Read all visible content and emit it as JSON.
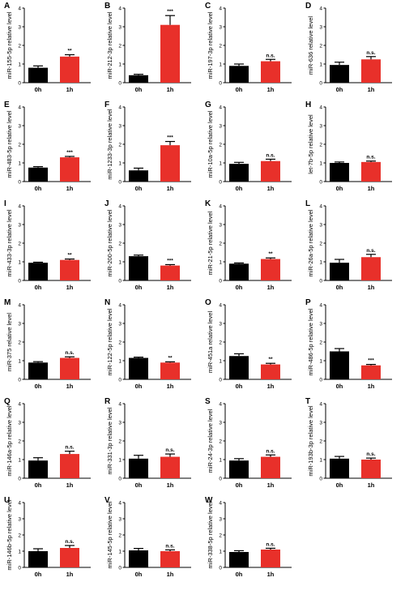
{
  "colors": {
    "control": "#000000",
    "treated": "#e8302a"
  },
  "chart_data": [
    {
      "type": "bar",
      "letter": "A",
      "ylabel": "miR-155-5p relative level",
      "categories": [
        "0h",
        "1h"
      ],
      "values": [
        0.8,
        1.4
      ],
      "errors": [
        0.1,
        0.1
      ],
      "yticks": [
        "0",
        "1",
        "2",
        "3",
        "4"
      ],
      "ylim": [
        0,
        4
      ],
      "significance": "**"
    },
    {
      "type": "bar",
      "letter": "B",
      "ylabel": "miR-212-3p relative level",
      "categories": [
        "0h",
        "1h"
      ],
      "values": [
        0.4,
        3.1
      ],
      "errors": [
        0.05,
        0.5
      ],
      "yticks": [
        "0",
        "1",
        "2",
        "3",
        "4"
      ],
      "ylim": [
        0,
        4
      ],
      "significance": "***"
    },
    {
      "type": "bar",
      "letter": "C",
      "ylabel": "miR-197-3p relative level",
      "categories": [
        "0h",
        "1h"
      ],
      "values": [
        0.9,
        1.15
      ],
      "errors": [
        0.1,
        0.1
      ],
      "yticks": [
        "0",
        "1",
        "2",
        "3",
        "4"
      ],
      "ylim": [
        0,
        4
      ],
      "significance": "n.s."
    },
    {
      "type": "bar",
      "letter": "D",
      "ylabel": "miR-636 relative level",
      "categories": [
        "0h",
        "1h"
      ],
      "values": [
        0.95,
        1.25
      ],
      "errors": [
        0.15,
        0.15
      ],
      "yticks": [
        "0",
        "1",
        "2",
        "3",
        "4"
      ],
      "ylim": [
        0,
        4
      ],
      "significance": "n.s."
    },
    {
      "type": "bar",
      "letter": "E",
      "ylabel": "miR-483-5p relative level",
      "categories": [
        "0h",
        "1h"
      ],
      "values": [
        0.75,
        1.3
      ],
      "errors": [
        0.05,
        0.05
      ],
      "yticks": [
        "0",
        "1",
        "2",
        "3",
        "4"
      ],
      "ylim": [
        0,
        4
      ],
      "significance": "***"
    },
    {
      "type": "bar",
      "letter": "F",
      "ylabel": "miR-1233-3p relative level",
      "categories": [
        "0h",
        "1h"
      ],
      "values": [
        0.6,
        1.95
      ],
      "errors": [
        0.12,
        0.2
      ],
      "yticks": [
        "0",
        "1",
        "2",
        "3",
        "4"
      ],
      "ylim": [
        0,
        4
      ],
      "significance": "***"
    },
    {
      "type": "bar",
      "letter": "G",
      "ylabel": "miR-10a-5p relative level",
      "categories": [
        "0h",
        "1h"
      ],
      "values": [
        0.95,
        1.1
      ],
      "errors": [
        0.08,
        0.1
      ],
      "yticks": [
        "0",
        "1",
        "2",
        "3",
        "4"
      ],
      "ylim": [
        0,
        4
      ],
      "significance": "n.s."
    },
    {
      "type": "bar",
      "letter": "H",
      "ylabel": "let-7b-5p relative level",
      "categories": [
        "0h",
        "1h"
      ],
      "values": [
        1.0,
        1.05
      ],
      "errors": [
        0.05,
        0.05
      ],
      "yticks": [
        "0",
        "1",
        "2",
        "3",
        "4"
      ],
      "ylim": [
        0,
        4
      ],
      "significance": "n.s."
    },
    {
      "type": "bar",
      "letter": "I",
      "ylabel": "miR-433-3p relative level",
      "categories": [
        "0h",
        "1h"
      ],
      "values": [
        0.95,
        1.1
      ],
      "errors": [
        0.03,
        0.05
      ],
      "yticks": [
        "0",
        "1",
        "2",
        "3",
        "4"
      ],
      "ylim": [
        0,
        4
      ],
      "significance": "**"
    },
    {
      "type": "bar",
      "letter": "J",
      "ylabel": "miR-200-5p relative level",
      "categories": [
        "0h",
        "1h"
      ],
      "values": [
        1.3,
        0.8
      ],
      "errors": [
        0.06,
        0.05
      ],
      "yticks": [
        "0",
        "1",
        "2",
        "3",
        "4"
      ],
      "ylim": [
        0,
        4
      ],
      "significance": "***"
    },
    {
      "type": "bar",
      "letter": "K",
      "ylabel": "miR-21-5p relative level",
      "categories": [
        "0h",
        "1h"
      ],
      "values": [
        0.9,
        1.15
      ],
      "errors": [
        0.04,
        0.06
      ],
      "yticks": [
        "0",
        "1",
        "2",
        "3",
        "4"
      ],
      "ylim": [
        0,
        4
      ],
      "significance": "**"
    },
    {
      "type": "bar",
      "letter": "L",
      "ylabel": "miR-26a-5p relative level",
      "categories": [
        "0h",
        "1h"
      ],
      "values": [
        0.95,
        1.25
      ],
      "errors": [
        0.18,
        0.15
      ],
      "yticks": [
        "0",
        "1",
        "2",
        "3",
        "4"
      ],
      "ylim": [
        0,
        4
      ],
      "significance": "n.s."
    },
    {
      "type": "bar",
      "letter": "M",
      "ylabel": "miR-375 relative level",
      "categories": [
        "0h",
        "1h"
      ],
      "values": [
        0.9,
        1.15
      ],
      "errors": [
        0.05,
        0.06
      ],
      "yticks": [
        "0",
        "1",
        "2",
        "3",
        "4"
      ],
      "ylim": [
        0,
        4
      ],
      "significance": "n.s."
    },
    {
      "type": "bar",
      "letter": "N",
      "ylabel": "miR-122-5p relative level",
      "categories": [
        "0h",
        "1h"
      ],
      "values": [
        1.15,
        0.9
      ],
      "errors": [
        0.04,
        0.04
      ],
      "yticks": [
        "0",
        "1",
        "2",
        "3",
        "4"
      ],
      "ylim": [
        0,
        4
      ],
      "significance": "**"
    },
    {
      "type": "bar",
      "letter": "O",
      "ylabel": "miR-451a relative level",
      "categories": [
        "0h",
        "1h"
      ],
      "values": [
        1.25,
        0.8
      ],
      "errors": [
        0.12,
        0.06
      ],
      "yticks": [
        "0",
        "1",
        "2",
        "3",
        "4"
      ],
      "ylim": [
        0,
        4
      ],
      "significance": "**"
    },
    {
      "type": "bar",
      "letter": "P",
      "ylabel": "miR-486-5p relative level",
      "categories": [
        "0h",
        "1h"
      ],
      "values": [
        1.5,
        0.75
      ],
      "errors": [
        0.15,
        0.05
      ],
      "yticks": [
        "0",
        "1",
        "2",
        "3",
        "4"
      ],
      "ylim": [
        0,
        4
      ],
      "significance": "***"
    },
    {
      "type": "bar",
      "letter": "Q",
      "ylabel": "miR-146a-5p relative level",
      "categories": [
        "0h",
        "1h"
      ],
      "values": [
        0.95,
        1.3
      ],
      "errors": [
        0.15,
        0.15
      ],
      "yticks": [
        "0",
        "1",
        "2",
        "3",
        "4"
      ],
      "ylim": [
        0,
        4
      ],
      "significance": "n.s."
    },
    {
      "type": "bar",
      "letter": "R",
      "ylabel": "miR-331-3p relative level",
      "categories": [
        "0h",
        "1h"
      ],
      "values": [
        1.05,
        1.15
      ],
      "errors": [
        0.18,
        0.15
      ],
      "yticks": [
        "0",
        "1",
        "2",
        "3",
        "4"
      ],
      "ylim": [
        0,
        4
      ],
      "significance": "n.s."
    },
    {
      "type": "bar",
      "letter": "S",
      "ylabel": "miR-24-3p relative level",
      "categories": [
        "0h",
        "1h"
      ],
      "values": [
        0.95,
        1.15
      ],
      "errors": [
        0.1,
        0.1
      ],
      "yticks": [
        "0",
        "1",
        "2",
        "3",
        "4"
      ],
      "ylim": [
        0,
        4
      ],
      "significance": "n.s."
    },
    {
      "type": "bar",
      "letter": "T",
      "ylabel": "miR-193b-3p relative level",
      "categories": [
        "0h",
        "1h"
      ],
      "values": [
        1.05,
        1.0
      ],
      "errors": [
        0.12,
        0.08
      ],
      "yticks": [
        "0",
        "1",
        "2",
        "3",
        "4"
      ],
      "ylim": [
        0,
        4
      ],
      "significance": "n.s."
    },
    {
      "type": "bar",
      "letter": "U",
      "ylabel": "miR-146b-5p relative level",
      "categories": [
        "0h",
        "1h"
      ],
      "values": [
        1.0,
        1.2
      ],
      "errors": [
        0.15,
        0.15
      ],
      "yticks": [
        "0",
        "1",
        "2",
        "3",
        "4"
      ],
      "ylim": [
        0,
        4
      ],
      "significance": "n.s."
    },
    {
      "type": "bar",
      "letter": "V",
      "ylabel": "miR-145-5p relative level",
      "categories": [
        "0h",
        "1h"
      ],
      "values": [
        1.05,
        1.0
      ],
      "errors": [
        0.12,
        0.08
      ],
      "yticks": [
        "0",
        "1",
        "2",
        "3",
        "4"
      ],
      "ylim": [
        0,
        4
      ],
      "significance": "n.s."
    },
    {
      "type": "bar",
      "letter": "W",
      "ylabel": "miR-338-5p relative level",
      "categories": [
        "0h",
        "1h"
      ],
      "values": [
        0.95,
        1.1
      ],
      "errors": [
        0.08,
        0.08
      ],
      "yticks": [
        "0",
        "1",
        "2",
        "3",
        "4"
      ],
      "ylim": [
        0,
        4
      ],
      "significance": "n.s."
    }
  ]
}
